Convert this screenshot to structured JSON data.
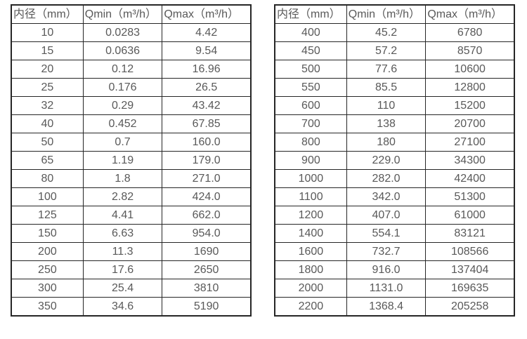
{
  "page": {
    "background": "#ffffff",
    "text_color": "#595959",
    "border_color": "#262626"
  },
  "tables": [
    {
      "name": "flow-table-small-diameters",
      "headers": [
        "内径（mm）",
        "Qmin（m³/h）",
        "Qmax（m³/h）"
      ],
      "rows": [
        [
          "10",
          "0.0283",
          "4.42"
        ],
        [
          "15",
          "0.0636",
          "9.54"
        ],
        [
          "20",
          "0.12",
          "16.96"
        ],
        [
          "25",
          "0.176",
          "26.5"
        ],
        [
          "32",
          "0.29",
          "43.42"
        ],
        [
          "40",
          "0.452",
          "67.85"
        ],
        [
          "50",
          "0.7",
          "160.0"
        ],
        [
          "65",
          "1.19",
          "179.0"
        ],
        [
          "80",
          "1.8",
          "271.0"
        ],
        [
          "100",
          "2.82",
          "424.0"
        ],
        [
          "125",
          "4.41",
          "662.0"
        ],
        [
          "150",
          "6.63",
          "954.0"
        ],
        [
          "200",
          "11.3",
          "1690"
        ],
        [
          "250",
          "17.6",
          "2650"
        ],
        [
          "300",
          "25.4",
          "3810"
        ],
        [
          "350",
          "34.6",
          "5190"
        ]
      ]
    },
    {
      "name": "flow-table-large-diameters",
      "headers": [
        "内径（mm）",
        "Qmin（m³/h）",
        "Qmax（m³/h）"
      ],
      "rows": [
        [
          "400",
          "45.2",
          "6780"
        ],
        [
          "450",
          "57.2",
          "8570"
        ],
        [
          "500",
          "77.6",
          "10600"
        ],
        [
          "550",
          "85.5",
          "12800"
        ],
        [
          "600",
          "110",
          "15200"
        ],
        [
          "700",
          "138",
          "20700"
        ],
        [
          "800",
          "180",
          "27100"
        ],
        [
          "900",
          "229.0",
          "34300"
        ],
        [
          "1000",
          "282.0",
          "42400"
        ],
        [
          "1100",
          "342.0",
          "51300"
        ],
        [
          "1200",
          "407.0",
          "61000"
        ],
        [
          "1400",
          "554.1",
          "83121"
        ],
        [
          "1600",
          "732.7",
          "108566"
        ],
        [
          "1800",
          "916.0",
          "137404"
        ],
        [
          "2000",
          "1131.0",
          "169635"
        ],
        [
          "2200",
          "1368.4",
          "205258"
        ]
      ]
    }
  ]
}
